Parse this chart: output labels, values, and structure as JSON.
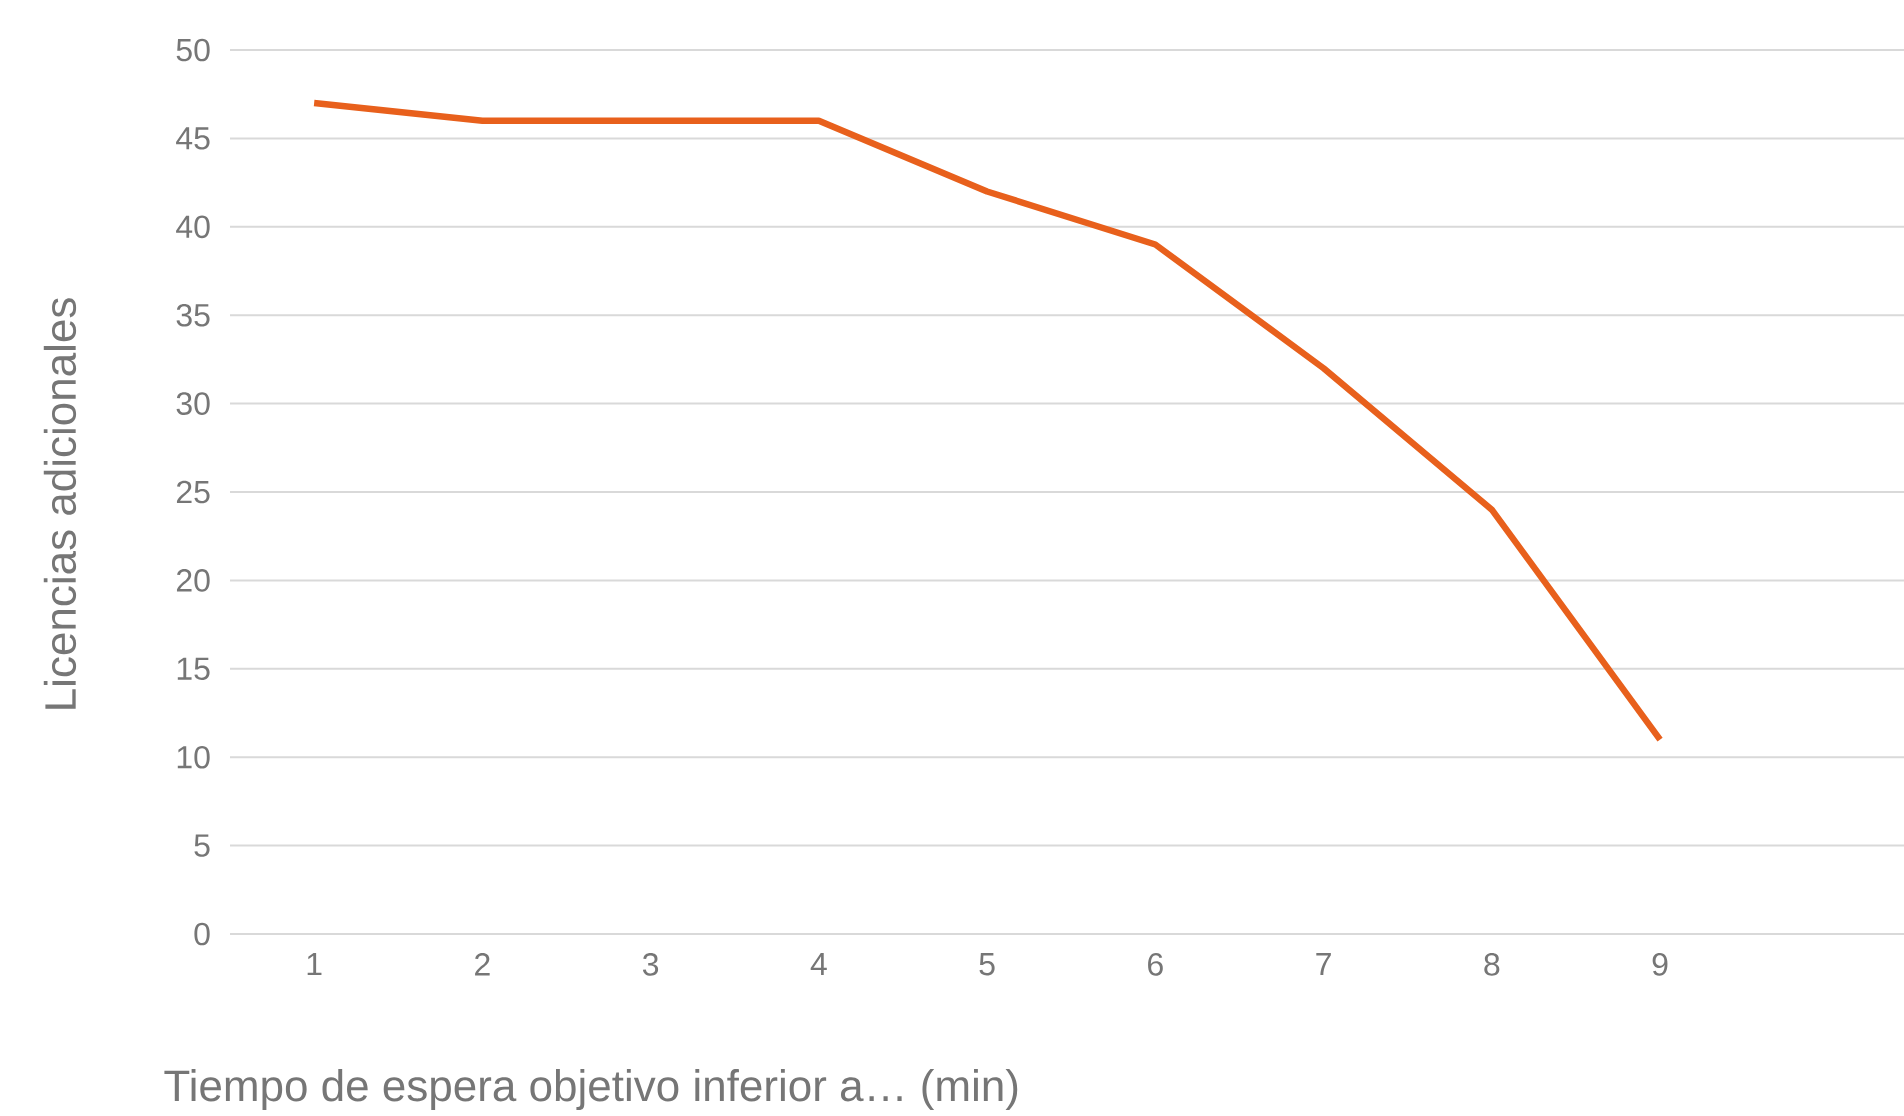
{
  "chart_data": {
    "type": "line",
    "xlabel": "Tiempo de espera objetivo inferior a… (min)",
    "ylabel": "Licencias adicionales",
    "x": [
      1,
      2,
      3,
      4,
      5,
      6,
      7,
      8,
      9
    ],
    "series": [
      {
        "color": "#e8601c",
        "values": [
          47,
          46,
          46,
          46,
          42,
          39,
          32,
          24,
          11
        ]
      }
    ],
    "xlim": [
      0.5,
      10.45
    ],
    "xticks": [
      1,
      2,
      3,
      4,
      5,
      6,
      7,
      8,
      9
    ],
    "ylim": [
      0,
      50
    ],
    "yticks": [
      0,
      5,
      10,
      15,
      20,
      25,
      30,
      35,
      40,
      45,
      50
    ],
    "grid": "y",
    "marker": "none",
    "line_style": "solid"
  }
}
